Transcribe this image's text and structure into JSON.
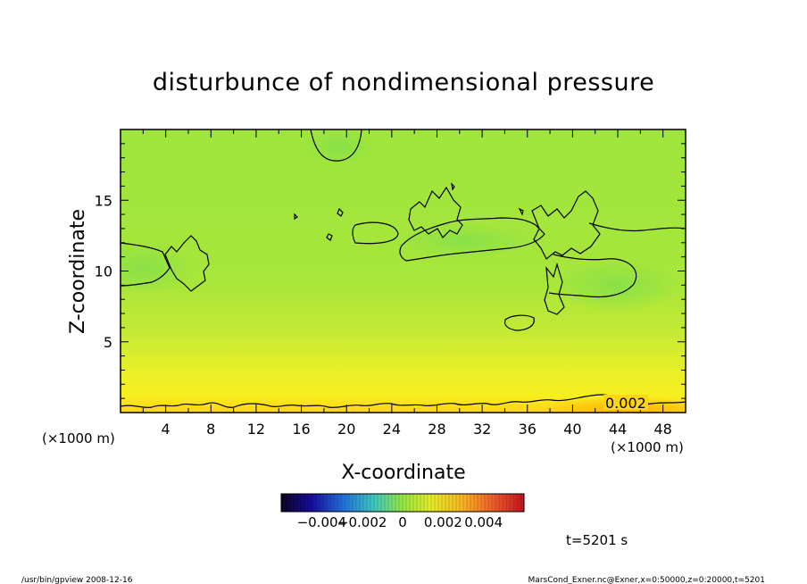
{
  "chart_data": {
    "type": "heatmap",
    "title": "disturbunce of nondimensional pressure",
    "xlabel": "X-coordinate",
    "ylabel": "Z-coordinate",
    "x_unit": "(×1000 m)",
    "y_unit": "(×1000 m)",
    "xlim": [
      0,
      50
    ],
    "ylim": [
      0,
      20
    ],
    "x_ticks": [
      4,
      8,
      12,
      16,
      20,
      24,
      28,
      32,
      36,
      40,
      44,
      48
    ],
    "y_ticks": [
      5,
      10,
      15
    ],
    "contour_labels": [
      {
        "text": "0.002",
        "x": 44.3,
        "y": 0.6
      }
    ],
    "colorbar": {
      "range": [
        -0.006,
        0.006
      ],
      "tick_labels": [
        "−0.004",
        "−0.002",
        "0",
        "0.002",
        "0.004"
      ]
    },
    "time_label": "t=5201 s",
    "footer_left": "/usr/bin/gpview   2008-12-16",
    "footer_right": "MarsCond_Exner.nc@Exner,x=0:50000,z=0:20000,t=5201"
  },
  "colors": {
    "field_mid": "#9fe63a",
    "field_low": "#f4f020",
    "field_bottom": "#ffb400",
    "contour": "#000000"
  }
}
